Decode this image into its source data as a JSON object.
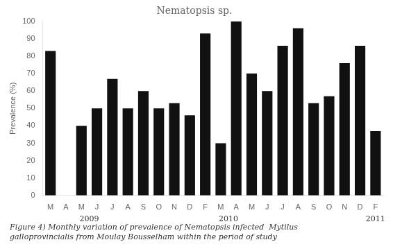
{
  "chart_data": {
    "type": "bar",
    "title": "Nematopsis sp.",
    "ylabel": "Prevalence (%)",
    "categories": [
      "M",
      "A",
      "M",
      "J",
      "J",
      "A",
      "S",
      "O",
      "N",
      "D",
      "F",
      "M",
      "A",
      "M",
      "J",
      "J",
      "A",
      "S",
      "O",
      "N",
      "D",
      "F"
    ],
    "values": [
      83,
      0,
      40,
      50,
      67,
      50,
      60,
      50,
      53,
      46,
      93,
      30,
      100,
      70,
      60,
      86,
      96,
      53,
      57,
      76,
      86,
      37
    ],
    "color": "#111111",
    "ylim": [
      0,
      100
    ],
    "yticks": [
      0,
      10,
      20,
      30,
      40,
      50,
      60,
      70,
      80,
      90,
      100
    ],
    "grid": false,
    "annotations": [
      {
        "text": "2009",
        "x": 2.5
      },
      {
        "text": "2010",
        "x": 11.5
      },
      {
        "text": "2011",
        "x": 21.0
      },
      {
        "text": "Figure 4) Monthly variation of prevalence of Nematopsis infected  Mytilus\ngalloprovincialis from Moulay Bousselham within the period of study"
      }
    ]
  }
}
